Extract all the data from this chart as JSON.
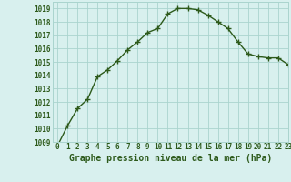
{
  "x": [
    0,
    1,
    2,
    3,
    4,
    5,
    6,
    7,
    8,
    9,
    10,
    11,
    12,
    13,
    14,
    15,
    16,
    17,
    18,
    19,
    20,
    21,
    22,
    23
  ],
  "y": [
    1008.7,
    1010.2,
    1011.5,
    1012.2,
    1013.9,
    1014.4,
    1015.1,
    1015.9,
    1016.5,
    1017.2,
    1017.5,
    1018.6,
    1019.0,
    1019.0,
    1018.9,
    1018.5,
    1018.0,
    1017.5,
    1016.5,
    1015.6,
    1015.4,
    1015.3,
    1015.3,
    1014.8
  ],
  "line_color": "#2d5a1b",
  "marker": "+",
  "marker_size": 4,
  "bg_color": "#d8f0ee",
  "grid_color": "#aad4ce",
  "xlabel": "Graphe pression niveau de la mer (hPa)",
  "ylim": [
    1009,
    1019.5
  ],
  "xlim": [
    -0.5,
    23
  ],
  "yticks": [
    1009,
    1010,
    1011,
    1012,
    1013,
    1014,
    1015,
    1016,
    1017,
    1018,
    1019
  ],
  "xticks": [
    0,
    1,
    2,
    3,
    4,
    5,
    6,
    7,
    8,
    9,
    10,
    11,
    12,
    13,
    14,
    15,
    16,
    17,
    18,
    19,
    20,
    21,
    22,
    23
  ],
  "tick_fontsize": 5.5,
  "label_fontsize": 7,
  "line_width": 1.0,
  "marker_size_pts": 4
}
